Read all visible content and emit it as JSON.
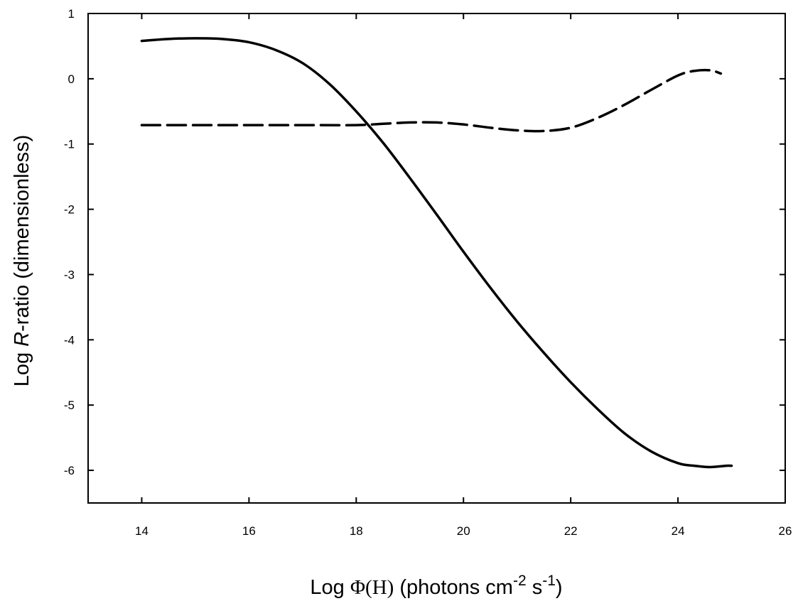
{
  "chart_data": {
    "type": "line",
    "xlabel": {
      "prefix": "Log ",
      "symbol": "Φ(H)",
      "units_pre": " (photons cm",
      "exp1": "-2",
      "units_mid": " s",
      "exp2": "-1",
      "units_post": ")"
    },
    "ylabel": {
      "prefix": "Log ",
      "italic": "R",
      "suffix": "-ratio (dimensionless)"
    },
    "xlim": [
      13,
      26
    ],
    "ylim": [
      -6.5,
      1
    ],
    "xticks": [
      14,
      16,
      18,
      20,
      22,
      24,
      26
    ],
    "yticks": [
      1,
      0,
      -1,
      -2,
      -3,
      -4,
      -5,
      -6
    ],
    "grid": false,
    "series": [
      {
        "style": "solid",
        "x": [
          14,
          14.5,
          15,
          15.5,
          16,
          16.5,
          17,
          17.5,
          18,
          18.5,
          19,
          19.5,
          20,
          20.5,
          21,
          21.5,
          22,
          22.5,
          23,
          23.5,
          24,
          24.3,
          24.6,
          24.9,
          25
        ],
        "y": [
          0.58,
          0.61,
          0.62,
          0.61,
          0.56,
          0.44,
          0.24,
          -0.08,
          -0.5,
          -0.98,
          -1.52,
          -2.08,
          -2.65,
          -3.2,
          -3.72,
          -4.2,
          -4.65,
          -5.06,
          -5.43,
          -5.71,
          -5.89,
          -5.93,
          -5.95,
          -5.93,
          -5.93
        ]
      },
      {
        "style": "dashed",
        "x": [
          14,
          15,
          16,
          17,
          18,
          18.5,
          19,
          19.5,
          20,
          20.5,
          21,
          21.5,
          22,
          22.5,
          23,
          23.5,
          24,
          24.3,
          24.6,
          24.8
        ],
        "y": [
          -0.71,
          -0.71,
          -0.71,
          -0.71,
          -0.71,
          -0.69,
          -0.67,
          -0.67,
          -0.7,
          -0.75,
          -0.79,
          -0.8,
          -0.75,
          -0.6,
          -0.4,
          -0.17,
          0.05,
          0.12,
          0.13,
          0.08
        ]
      }
    ]
  }
}
